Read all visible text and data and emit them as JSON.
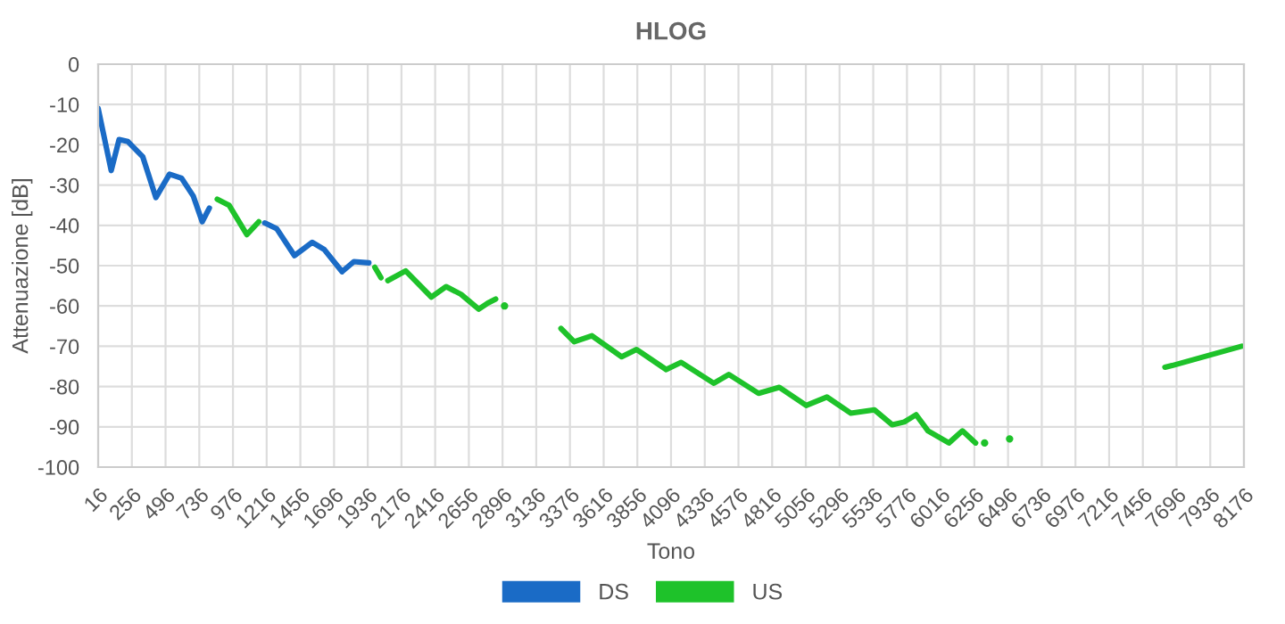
{
  "chart_data": {
    "type": "line",
    "title": "HLOG",
    "xlabel": "Tono",
    "ylabel": "Attenuazione [dB]",
    "xlim": [
      16,
      8176
    ],
    "xticks": [
      16,
      256,
      496,
      736,
      976,
      1216,
      1456,
      1696,
      1936,
      2176,
      2416,
      2656,
      2896,
      3136,
      3376,
      3616,
      3856,
      4096,
      4336,
      4576,
      4816,
      5056,
      5296,
      5536,
      5776,
      6016,
      6256,
      6496,
      6736,
      6976,
      7216,
      7456,
      7696,
      7936,
      8176
    ],
    "ylim": [
      -100,
      0
    ],
    "yticks": [
      -100,
      -90,
      -80,
      -70,
      -60,
      -50,
      -40,
      -30,
      -20,
      -10,
      0
    ],
    "grid": true,
    "legend": "bottom",
    "marker": "none",
    "line_style": "solid",
    "series": [
      {
        "name": "DS",
        "color": "#1a6bc6",
        "x": [
          16,
          109,
          165,
          228,
          334,
          427,
          524,
          610,
          693,
          757,
          808,
          830,
          1202,
          1287,
          1414,
          1541,
          1626,
          1753,
          1837,
          1944
        ],
        "values": [
          -11,
          -26.4,
          -18.7,
          -19.2,
          -23,
          -33.1,
          -27.3,
          -28.3,
          -32.7,
          -39.1,
          -35.7,
          null,
          -39.4,
          -40.8,
          -47.5,
          -44.2,
          -46,
          -51.5,
          -49,
          -49.3
        ]
      },
      {
        "name": "US",
        "color": "#1ec22a",
        "x": [
          864,
          948,
          1075,
          1160,
          1180,
          1986,
          2030,
          2055,
          2079,
          2206,
          2389,
          2494,
          2600,
          2727,
          2791,
          2847,
          2875,
          3312,
          3406,
          3533,
          3744,
          3850,
          4062,
          4168,
          4401,
          4507,
          4719,
          4867,
          5058,
          5206,
          5376,
          5545,
          5672,
          5757,
          5841,
          5926,
          6075,
          6171,
          6265,
          7000,
          7613,
          7664,
          8160
        ],
        "values": [
          -33.5,
          -35,
          -42.3,
          -39.1,
          null,
          -50.4,
          -53,
          null,
          -53.7,
          -51.3,
          -57.8,
          -55.2,
          -57.1,
          -60.8,
          -59.3,
          -58.3,
          null,
          -65.6,
          -68.9,
          -67.4,
          -72.6,
          -70.8,
          -75.8,
          -74,
          -79.2,
          -77,
          -81.7,
          -80.2,
          -84.7,
          -82.6,
          -86.6,
          -85.8,
          -89.5,
          -88.8,
          -87,
          -91,
          -94,
          -91,
          -94,
          null,
          -75.2,
          -74.8,
          -70
        ]
      },
      {
        "type": "scatter",
        "marker": "circle",
        "color": "#1ec22a",
        "x": [
          2910,
          6329,
          6507
        ],
        "values": [
          -60,
          -94,
          -93
        ]
      }
    ]
  }
}
